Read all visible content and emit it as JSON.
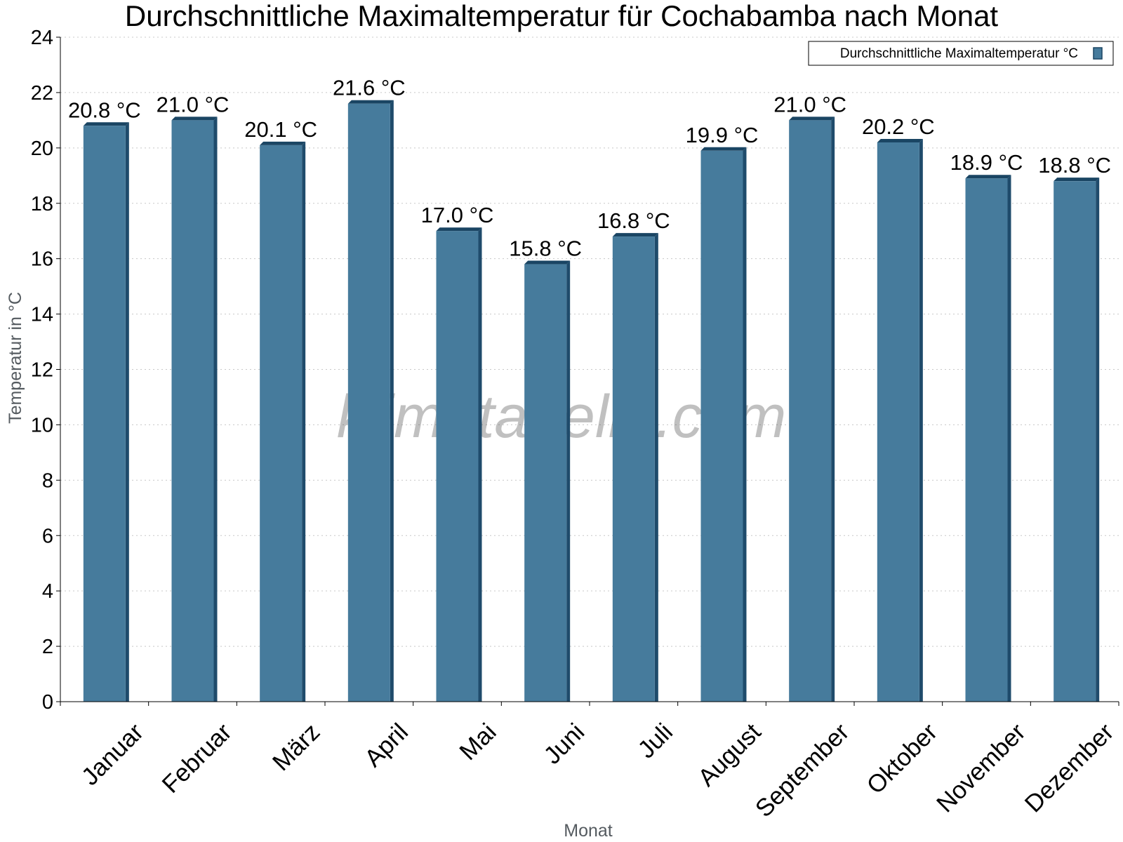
{
  "chart_data": {
    "type": "bar",
    "title": "Durchschnittliche Maximaltemperatur für Cochabamba nach Monat",
    "xlabel": "Monat",
    "ylabel": "Temperatur in °C",
    "categories": [
      "Januar",
      "Februar",
      "März",
      "April",
      "Mai",
      "Juni",
      "Juli",
      "August",
      "September",
      "Oktober",
      "November",
      "Dezember"
    ],
    "series": [
      {
        "name": "Durchschnittliche Maximaltemperatur °C",
        "values": [
          20.8,
          21.0,
          20.1,
          21.6,
          17.0,
          15.8,
          16.8,
          19.9,
          21.0,
          20.2,
          18.9,
          18.8
        ],
        "data_labels": [
          "20.8 °C",
          "21.0 °C",
          "20.1 °C",
          "21.6 °C",
          "17.0 °C",
          "15.8 °C",
          "16.8 °C",
          "19.9 °C",
          "21.0 °C",
          "20.2 °C",
          "18.9 °C",
          "18.8 °C"
        ]
      }
    ],
    "ylim": [
      0,
      24
    ],
    "yticks": [
      0,
      2,
      4,
      6,
      8,
      10,
      12,
      14,
      16,
      18,
      20,
      22,
      24
    ],
    "grid": true,
    "legend_position": "top-right",
    "colors": {
      "bar_face": "#467b9c",
      "bar_side": "#1f4b6b",
      "bar_top": "#1a4563"
    },
    "watermark": "klimatabelle.com"
  }
}
